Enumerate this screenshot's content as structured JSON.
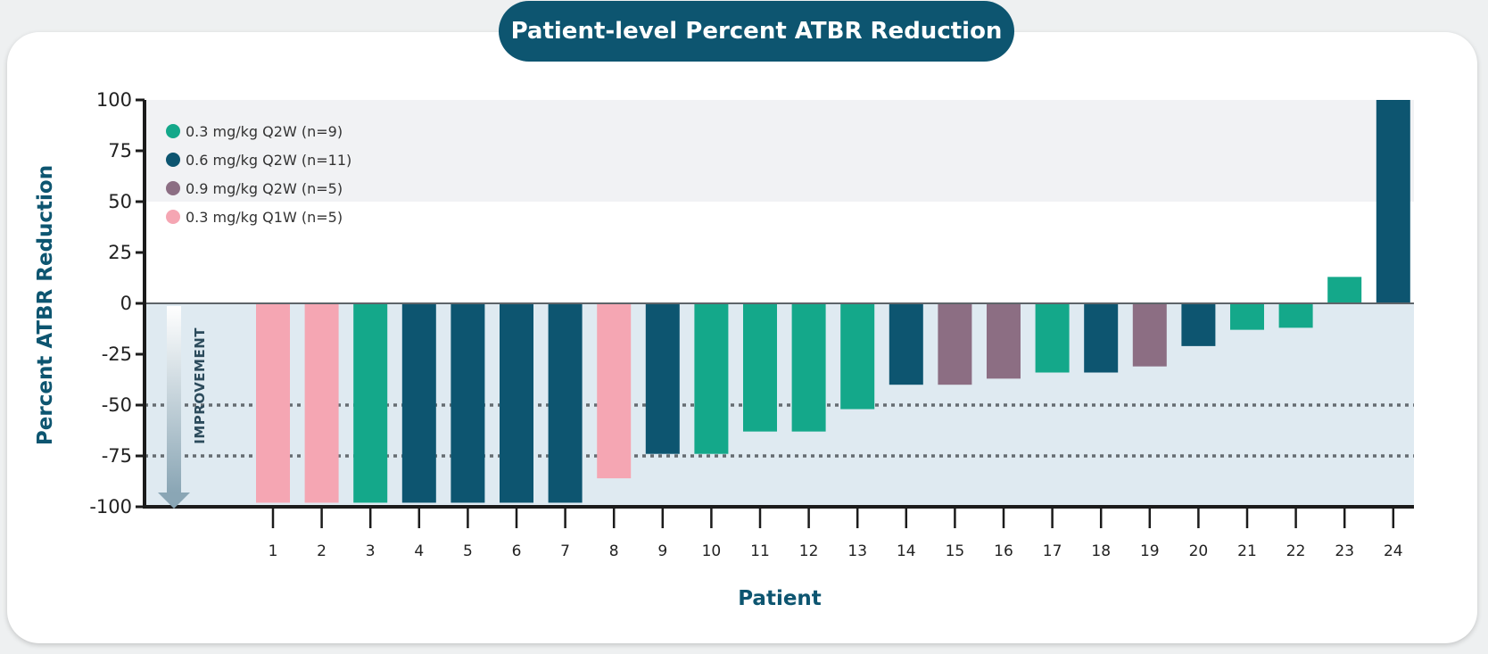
{
  "chart_data": {
    "type": "bar",
    "title": "Patient-level Percent ATBR Reduction",
    "xlabel": "Patient",
    "ylabel": "Percent ATBR Reduction",
    "ylim": [
      -100,
      100
    ],
    "yticks": [
      100,
      75,
      50,
      25,
      0,
      -25,
      -50,
      -75,
      -100
    ],
    "annotation": "IMPROVEMENT",
    "reference_lines": [
      -50,
      -75
    ],
    "legend_position": "top-left",
    "series": [
      {
        "name": "0.3 mg/kg Q2W (n=9)",
        "color": "#14a88a"
      },
      {
        "name": "0.6 mg/kg Q2W (n=11)",
        "color": "#0d5570"
      },
      {
        "name": "0.9 mg/kg Q2W (n=5)",
        "color": "#8c6e83"
      },
      {
        "name": "0.3 mg/kg Q1W (n=5)",
        "color": "#f5a6b3"
      }
    ],
    "categories": [
      "1",
      "2",
      "3",
      "4",
      "5",
      "6",
      "7",
      "8",
      "9",
      "10",
      "11",
      "12",
      "13",
      "14",
      "15",
      "16",
      "17",
      "18",
      "19",
      "20",
      "21",
      "22",
      "23",
      "24"
    ],
    "values": [
      -98,
      -98,
      -98,
      -98,
      -98,
      -98,
      -98,
      -86,
      -74,
      -74,
      -63,
      -63,
      -52,
      -40,
      -40,
      -37,
      -34,
      -34,
      -31,
      -21,
      -13,
      -12,
      13,
      100
    ],
    "series_index": [
      3,
      3,
      0,
      1,
      1,
      1,
      1,
      3,
      1,
      0,
      0,
      0,
      0,
      1,
      2,
      2,
      0,
      1,
      2,
      1,
      0,
      0,
      0,
      1
    ]
  }
}
